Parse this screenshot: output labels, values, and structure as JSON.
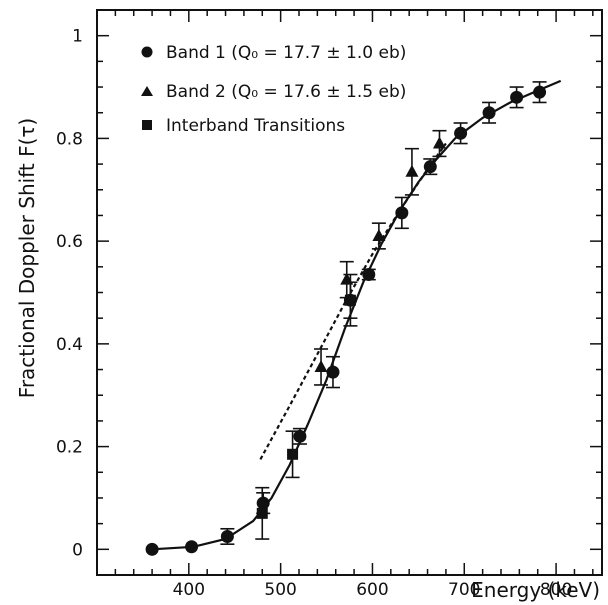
{
  "chart_data": {
    "type": "scatter",
    "xlabel": "Energy (keV)",
    "ylabel": "Fractional Doppler Shift F(τ)",
    "xlim": [
      300,
      850
    ],
    "ylim": [
      -0.05,
      1.05
    ],
    "x_ticks": [
      400,
      500,
      600,
      700,
      800
    ],
    "x_tick_labels": [
      "400",
      "500",
      "600",
      "700",
      "800"
    ],
    "y_ticks": [
      0,
      0.2,
      0.4,
      0.6,
      0.8,
      1
    ],
    "y_tick_labels": [
      "0",
      "0.2",
      "0.4",
      "0.6",
      "0.8",
      "1"
    ],
    "legend_position": "top-left",
    "series": [
      {
        "name": "Band 1 (Q₀ = 17.7 ± 1.0 eb)",
        "marker": "circle",
        "points": [
          {
            "x": 360,
            "y": 0.0,
            "err": 0.0
          },
          {
            "x": 403,
            "y": 0.005,
            "err": 0.0
          },
          {
            "x": 442,
            "y": 0.025,
            "err": 0.015
          },
          {
            "x": 481,
            "y": 0.09,
            "err": 0.02
          },
          {
            "x": 521,
            "y": 0.22,
            "err": 0.015
          },
          {
            "x": 557,
            "y": 0.345,
            "err": 0.03
          },
          {
            "x": 576,
            "y": 0.485,
            "err": 0.035
          },
          {
            "x": 596,
            "y": 0.535,
            "err": 0.01
          },
          {
            "x": 632,
            "y": 0.655,
            "err": 0.03
          },
          {
            "x": 663,
            "y": 0.745,
            "err": 0.015
          },
          {
            "x": 696,
            "y": 0.81,
            "err": 0.02
          },
          {
            "x": 727,
            "y": 0.85,
            "err": 0.02
          },
          {
            "x": 757,
            "y": 0.88,
            "err": 0.02
          },
          {
            "x": 782,
            "y": 0.89,
            "err": 0.02
          }
        ]
      },
      {
        "name": "Band 2 (Q₀ = 17.6 ± 1.5 eb)",
        "marker": "triangle",
        "points": [
          {
            "x": 544,
            "y": 0.355,
            "err": 0.035
          },
          {
            "x": 572,
            "y": 0.525,
            "err": 0.035
          },
          {
            "x": 607,
            "y": 0.61,
            "err": 0.025
          },
          {
            "x": 643,
            "y": 0.735,
            "err": 0.045
          },
          {
            "x": 673,
            "y": 0.79,
            "err": 0.025
          }
        ]
      },
      {
        "name": "Interband Transitions",
        "marker": "square",
        "points": [
          {
            "x": 480,
            "y": 0.07,
            "err": 0.05
          },
          {
            "x": 513,
            "y": 0.185,
            "err": 0.045
          },
          {
            "x": 576,
            "y": 0.485,
            "err": 0.05
          }
        ]
      }
    ],
    "fit_curves": [
      {
        "style": "solid",
        "x": [
          360,
          405,
          440,
          470,
          490,
          510,
          530,
          550,
          570,
          590,
          610,
          630,
          650,
          670,
          690,
          720,
          750,
          780,
          805
        ],
        "y": [
          0.0,
          0.005,
          0.02,
          0.055,
          0.1,
          0.165,
          0.245,
          0.33,
          0.43,
          0.52,
          0.595,
          0.66,
          0.715,
          0.76,
          0.8,
          0.84,
          0.87,
          0.893,
          0.912
        ]
      },
      {
        "style": "dashed",
        "x": [
          478,
          510,
          540,
          570,
          600,
          630,
          660,
          680
        ],
        "y": [
          0.175,
          0.28,
          0.38,
          0.48,
          0.575,
          0.66,
          0.74,
          0.79
        ]
      }
    ]
  }
}
